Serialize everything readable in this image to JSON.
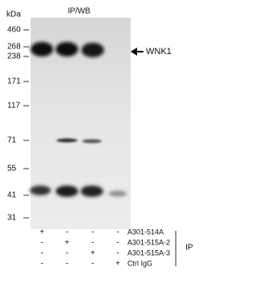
{
  "header": {
    "unit": "kDa",
    "title": "IP/WB"
  },
  "markers": [
    "460",
    "268",
    "238",
    "171",
    "117",
    "71",
    "55",
    "41",
    "31"
  ],
  "target": "WNK1",
  "table": {
    "rows": [
      {
        "label": "A301-514A",
        "signs": [
          "+",
          "-",
          "-",
          "-"
        ]
      },
      {
        "label": "A301-515A-2",
        "signs": [
          "-",
          "+",
          "-",
          "-"
        ]
      },
      {
        "label": "A301-515A-3",
        "signs": [
          "-",
          "-",
          "+",
          "-"
        ]
      },
      {
        "label": "Ctrl IgG",
        "signs": [
          "-",
          "-",
          "-",
          "+"
        ]
      }
    ],
    "group": "IP"
  }
}
